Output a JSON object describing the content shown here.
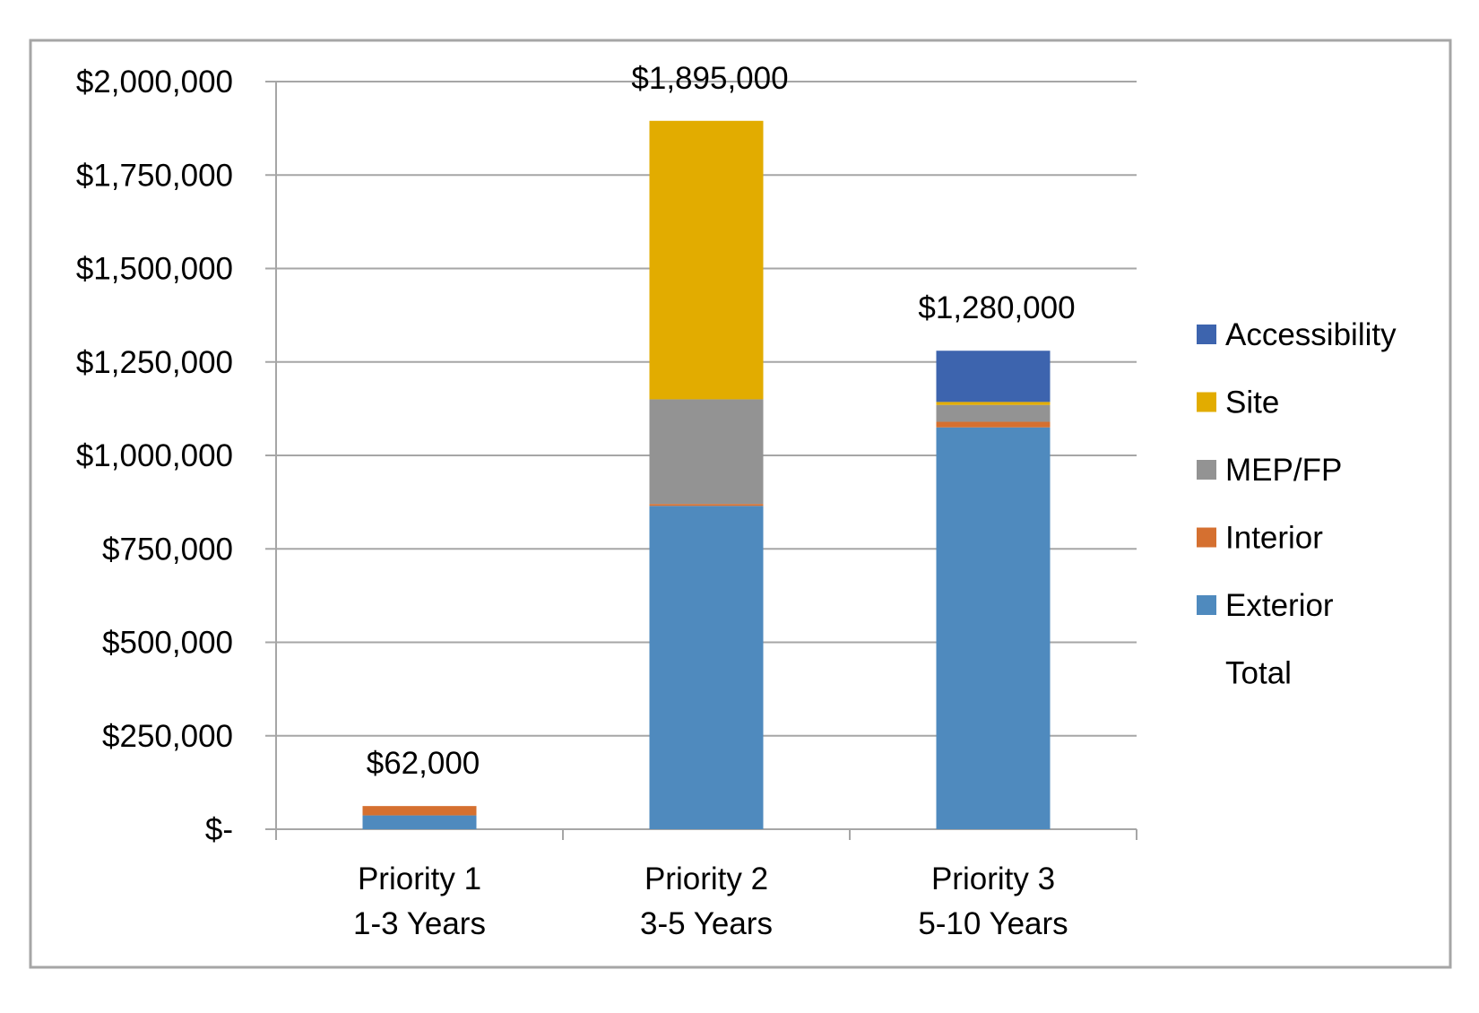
{
  "chart_data": {
    "type": "bar",
    "stacked": true,
    "title": "",
    "xlabel": "",
    "ylabel": "",
    "ylim": [
      0,
      2000000
    ],
    "y_ticks": [
      0,
      250000,
      500000,
      750000,
      1000000,
      1250000,
      1500000,
      1750000,
      2000000
    ],
    "y_tick_labels": [
      "$-",
      "$250,000",
      "$500,000",
      "$750,000",
      "$1,000,000",
      "$1,250,000",
      "$1,500,000",
      "$1,750,000",
      "$2,000,000"
    ],
    "grid": true,
    "categories": [
      {
        "line1": "Priority 1",
        "line2": "1-3 Years"
      },
      {
        "line1": "Priority 2",
        "line2": "3-5 Years"
      },
      {
        "line1": "Priority 3",
        "line2": "5-10 Years"
      }
    ],
    "series": [
      {
        "name": "Exterior",
        "color": "#4F8ABE",
        "values": [
          37000,
          865000,
          1075000
        ]
      },
      {
        "name": "Interior",
        "color": "#D57030",
        "values": [
          25000,
          5000,
          15000
        ]
      },
      {
        "name": "MEP/FP",
        "color": "#939393",
        "values": [
          0,
          280000,
          45000
        ]
      },
      {
        "name": "Site",
        "color": "#E2AC00",
        "values": [
          0,
          745000,
          8000
        ]
      },
      {
        "name": "Accessibility",
        "color": "#3D64AE",
        "values": [
          0,
          0,
          137000
        ]
      }
    ],
    "totals": {
      "name": "Total",
      "values": [
        62000,
        1895000,
        1280000
      ],
      "labels": [
        "$62,000",
        "$1,895,000",
        "$1,280,000"
      ]
    },
    "legend_order": [
      "Accessibility",
      "Site",
      "MEP/FP",
      "Interior",
      "Exterior",
      "Total"
    ],
    "legend_position": "right",
    "colors": {
      "frame": "#A6A6A6",
      "grid": "#A6A6A6",
      "axis": "#A6A6A6",
      "text": "#000000"
    }
  }
}
